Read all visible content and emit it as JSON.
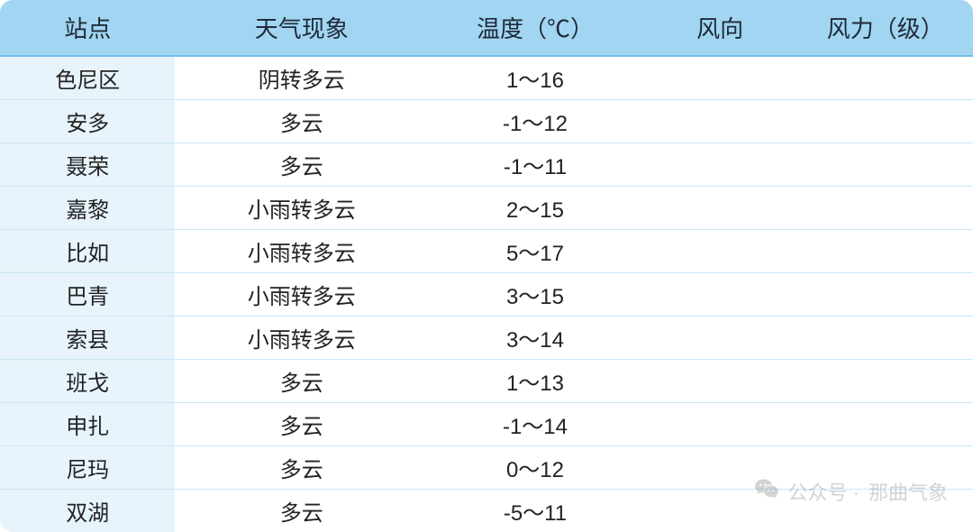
{
  "table": {
    "header_bg": "#a2d5f2",
    "header_underline": "#6fbfe8",
    "row_divider": "#c9e6f6",
    "body_bg": "#ffffff",
    "text_color": "#222222",
    "header_fontsize": 26,
    "body_fontsize": 24,
    "columns": [
      {
        "key": "station",
        "label": "站点",
        "width": "18%"
      },
      {
        "key": "weather",
        "label": "天气现象",
        "width": "26%"
      },
      {
        "key": "temp",
        "label": "温度（℃）",
        "width": "22%"
      },
      {
        "key": "wind_dir",
        "label": "风向",
        "width": "16%"
      },
      {
        "key": "wind_force",
        "label": "风力（级）",
        "width": "18%"
      }
    ],
    "rows": [
      {
        "station": "色尼区",
        "weather": "阴转多云",
        "temp": "1～16",
        "wind_dir": "",
        "wind_force": ""
      },
      {
        "station": "安多",
        "weather": "多云",
        "temp": "-1～12",
        "wind_dir": "",
        "wind_force": ""
      },
      {
        "station": "聂荣",
        "weather": "多云",
        "temp": "-1～11",
        "wind_dir": "",
        "wind_force": ""
      },
      {
        "station": "嘉黎",
        "weather": "小雨转多云",
        "temp": "2～15",
        "wind_dir": "",
        "wind_force": ""
      },
      {
        "station": "比如",
        "weather": "小雨转多云",
        "temp": "5～17",
        "wind_dir": "",
        "wind_force": ""
      },
      {
        "station": "巴青",
        "weather": "小雨转多云",
        "temp": "3～15",
        "wind_dir": "",
        "wind_force": ""
      },
      {
        "station": "索县",
        "weather": "小雨转多云",
        "temp": "3～14",
        "wind_dir": "",
        "wind_force": ""
      },
      {
        "station": "班戈",
        "weather": "多云",
        "temp": "1～13",
        "wind_dir": "",
        "wind_force": ""
      },
      {
        "station": "申扎",
        "weather": "多云",
        "temp": "-1～14",
        "wind_dir": "",
        "wind_force": ""
      },
      {
        "station": "尼玛",
        "weather": "多云",
        "temp": "0～12",
        "wind_dir": "",
        "wind_force": ""
      },
      {
        "station": "双湖",
        "weather": "多云",
        "temp": "-5～11",
        "wind_dir": "",
        "wind_force": ""
      }
    ]
  },
  "watermark": {
    "prefix": "公众号 ·",
    "name": "那曲气象",
    "icon": "wechat-icon",
    "color": "#7a7a7a",
    "opacity": 0.32
  }
}
